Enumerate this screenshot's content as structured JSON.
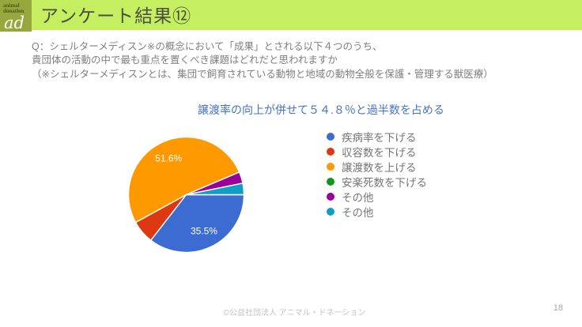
{
  "header": {
    "title": "アンケート結果⑫",
    "bg_color": "#c5ee61",
    "logo": {
      "line1": "animal",
      "line2": "donation",
      "script": "ad",
      "bg_color": "#96a83d"
    }
  },
  "question": {
    "lines": [
      "Q：シェルターメディスン※の概念において「成果」とされる以下４つのうち、",
      "貴団体の活動の中で最も重点を置くべき課題はどれだと思われますか",
      "（※シェルターメディスンとは、集団で飼育されている動物と地域の動物全般を保護・管理する獣医療）"
    ],
    "color": "#7f7f7f"
  },
  "chart_data": {
    "type": "pie",
    "annotation": "譲渡率の向上が併せて５４.８％と過半数を占める",
    "annotation_color": "#4472c4",
    "categories": [
      "疾病率を下げる",
      "収容数を下げる",
      "譲渡数を上げる",
      "安楽死数を下げる",
      "その他",
      "その他"
    ],
    "values": [
      35.5,
      6.5,
      51.6,
      0,
      3.2,
      3.2
    ],
    "colors": [
      "#3c6bd2",
      "#dc3912",
      "#ff9900",
      "#109618",
      "#990099",
      "#0f9ec5"
    ],
    "slice_labels": [
      "35.5%",
      "",
      "51.6%",
      "",
      "",
      ""
    ],
    "legend_position": "right",
    "start_angle": "3-oclock-clockwise",
    "legend_text_color": "#757575"
  },
  "footer": {
    "copyright": "©公益社団法人 アニマル・ドネーション",
    "page_number": "18"
  }
}
